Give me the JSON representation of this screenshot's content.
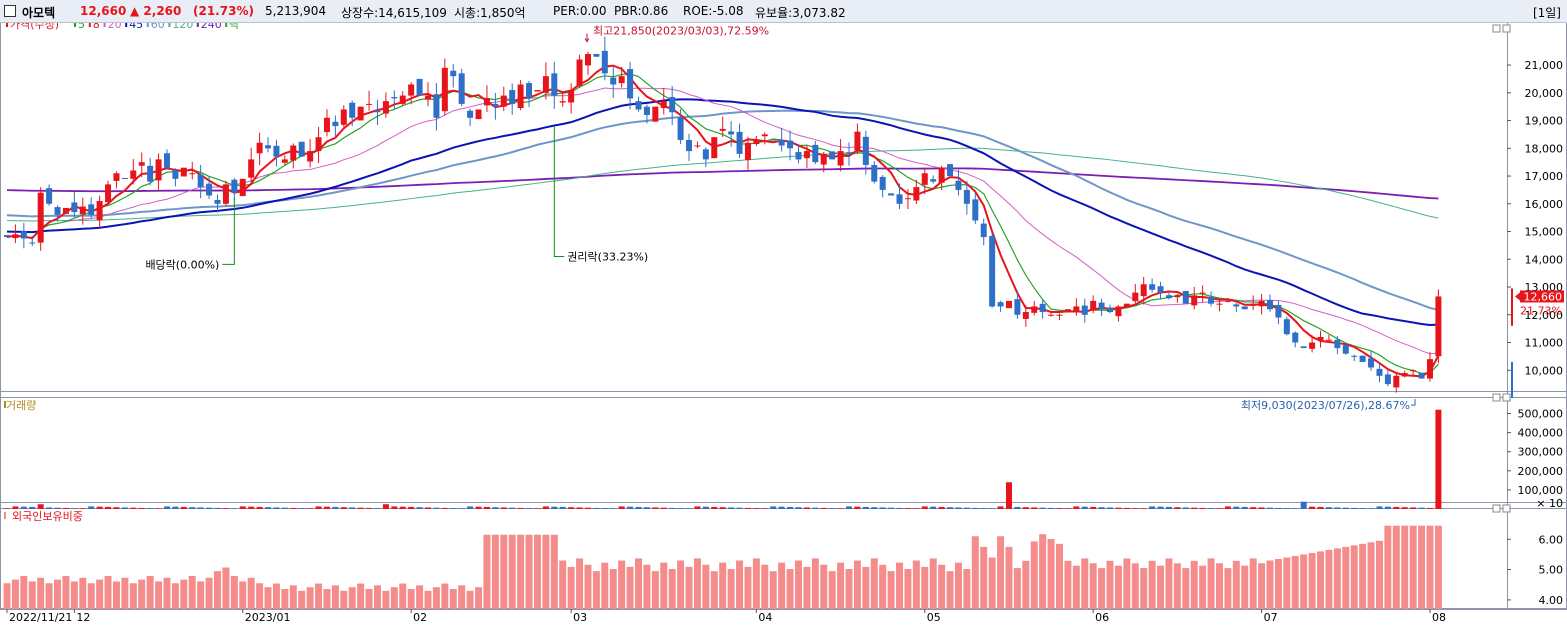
{
  "header": {
    "name": "아모텍",
    "price": "12,660",
    "change": "▲ 2,260",
    "change_pct": "(21.73%)",
    "volume": "5,213,904",
    "listed": "상장수:14,615,109",
    "mktcap": "시총:1,850억",
    "per": "PER:0.00",
    "pbr": "PBR:0.86",
    "roe": "ROE:-5.08",
    "float": "유보율:3,073.82",
    "period": "[1일]"
  },
  "colors": {
    "up": "#e8141b",
    "down": "#2e6fc8",
    "ma5": "#27a327",
    "ma20": "#d25fc4",
    "ma45": "#0a14b4",
    "ma60": "#6f96c8",
    "ma120": "#4ab08a",
    "ma240": "#7a1eb4",
    "foreign": "#f58c8c"
  },
  "chart_data": [
    {
      "type": "candlestick",
      "title": "",
      "legend": [
        {
          "label": "가격(수정)",
          "color": "#e8141b"
        },
        {
          "label": "5",
          "color": "#27a327"
        },
        {
          "label": "8",
          "color": "#e8141b"
        },
        {
          "label": "20",
          "color": "#d25fc4"
        },
        {
          "label": "45",
          "color": "#0a14b4"
        },
        {
          "label": "60",
          "color": "#6f96c8"
        },
        {
          "label": "120",
          "color": "#4ab08a"
        },
        {
          "label": "240",
          "color": "#7a1eb4"
        },
        {
          "label": "락",
          "color": "#27a327"
        }
      ],
      "ylim": [
        9000,
        22300
      ],
      "yticks": [
        "10,000",
        "11,000",
        "12,000",
        "13,000",
        "14,000",
        "15,000",
        "16,000",
        "17,000",
        "18,000",
        "19,000",
        "20,000",
        "21,000"
      ],
      "x_labels": [
        {
          "label": "2022/11/21",
          "i": 0
        },
        {
          "label": "12",
          "i": 8
        },
        {
          "label": "2023/01",
          "i": 28
        },
        {
          "label": "02",
          "i": 48
        },
        {
          "label": "03",
          "i": 67
        },
        {
          "label": "04",
          "i": 89
        },
        {
          "label": "05",
          "i": 109
        },
        {
          "label": "06",
          "i": 129
        },
        {
          "label": "07",
          "i": 149
        },
        {
          "label": "08",
          "i": 169
        }
      ],
      "closes": [
        14800,
        14900,
        14750,
        14600,
        16400,
        16000,
        15600,
        15850,
        15700,
        15900,
        15600,
        16100,
        16700,
        17100,
        16900,
        17200,
        17500,
        16800,
        17600,
        17300,
        16900,
        17300,
        17100,
        16600,
        16300,
        16000,
        16700,
        16400,
        16900,
        17600,
        18200,
        18000,
        17700,
        17600,
        18100,
        17700,
        17900,
        18400,
        19100,
        18800,
        19400,
        19100,
        19500,
        19600,
        19300,
        19700,
        19800,
        19900,
        20300,
        19900,
        19900,
        19100,
        20900,
        20600,
        19600,
        19100,
        19400,
        19800,
        19500,
        19900,
        19600,
        20300,
        19800,
        20100,
        20600,
        19900,
        19700,
        20100,
        21200,
        21400,
        21300,
        20700,
        20300,
        20600,
        19800,
        19400,
        19200,
        19500,
        19700,
        19300,
        18300,
        17900,
        18100,
        17600,
        18400,
        18700,
        18500,
        17800,
        18200,
        18300,
        18500,
        18300,
        18100,
        18000,
        17600,
        17900,
        17500,
        17800,
        17600,
        17900,
        17800,
        18600,
        17400,
        16800,
        16500,
        16300,
        16000,
        16200,
        16600,
        17100,
        16800,
        17300,
        17000,
        16500,
        16000,
        15400,
        14800,
        12300,
        12300,
        12500,
        12000,
        12100,
        12300,
        12100,
        12000,
        12000,
        12200,
        12300,
        12000,
        12500,
        12200,
        12100,
        12300,
        12400,
        12800,
        13100,
        12900,
        12800,
        12600,
        12700,
        12400,
        12700,
        12800,
        12400,
        12400,
        12500,
        12300,
        12200,
        12400,
        12500,
        12200,
        11900,
        11300,
        11000,
        10800,
        11000,
        11200,
        11100,
        10800,
        10600,
        10500,
        10300,
        10100,
        9800,
        9500,
        9800,
        9900,
        10000,
        9700,
        10400,
        12660
      ],
      "volume_pane": {
        "label": "거래량",
        "ylim": [
          0,
          550000
        ],
        "yticks": [
          "100,000",
          "200,000",
          "300,000",
          "400,000",
          "500,000"
        ],
        "unit": "× 10",
        "last_value": 520000
      },
      "foreign_pane": {
        "label": "외국인보유비중",
        "ylim": [
          3.7,
          7.0
        ],
        "yticks": [
          "4.00",
          "5.00",
          "6.00"
        ]
      },
      "annotations": {
        "high": "최고21,850(2023/03/03),72.59%",
        "low": "최저9,030(2023/07/26),28.67%",
        "dividend": "배당락(0.00%)",
        "rights": "권리락(33.23%)",
        "last_price": "12,660",
        "last_pct": "21.73%"
      }
    }
  ]
}
